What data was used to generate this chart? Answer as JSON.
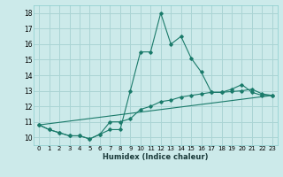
{
  "title": "",
  "xlabel": "Humidex (Indice chaleur)",
  "bg_color": "#cceaea",
  "grid_color": "#aad4d4",
  "line_color": "#1a7a6a",
  "xlim": [
    -0.5,
    23.5
  ],
  "ylim": [
    9.5,
    18.5
  ],
  "xticks": [
    0,
    1,
    2,
    3,
    4,
    5,
    6,
    7,
    8,
    9,
    10,
    11,
    12,
    13,
    14,
    15,
    16,
    17,
    18,
    19,
    20,
    21,
    22,
    23
  ],
  "yticks": [
    10,
    11,
    12,
    13,
    14,
    15,
    16,
    17,
    18
  ],
  "line1_x": [
    0,
    1,
    2,
    3,
    4,
    5,
    6,
    7,
    8,
    9,
    10,
    11,
    12,
    13,
    14,
    15,
    16,
    17,
    18,
    19,
    20,
    21,
    22,
    23
  ],
  "line1_y": [
    10.8,
    10.5,
    10.3,
    10.1,
    10.1,
    9.9,
    10.2,
    10.5,
    10.5,
    13.0,
    15.5,
    15.5,
    18.0,
    16.0,
    16.5,
    15.1,
    14.2,
    12.9,
    12.9,
    13.1,
    13.4,
    12.9,
    12.7,
    12.7
  ],
  "line2_x": [
    0,
    1,
    2,
    3,
    4,
    5,
    6,
    7,
    8,
    9,
    10,
    11,
    12,
    13,
    14,
    15,
    16,
    17,
    18,
    19,
    20,
    21,
    22,
    23
  ],
  "line2_y": [
    10.8,
    10.5,
    10.3,
    10.1,
    10.1,
    9.9,
    10.2,
    11.0,
    11.0,
    11.2,
    11.8,
    12.0,
    12.3,
    12.4,
    12.6,
    12.7,
    12.8,
    12.9,
    12.9,
    12.95,
    13.0,
    13.1,
    12.8,
    12.7
  ],
  "trend_x": [
    0,
    23
  ],
  "trend_y": [
    10.8,
    12.7
  ]
}
